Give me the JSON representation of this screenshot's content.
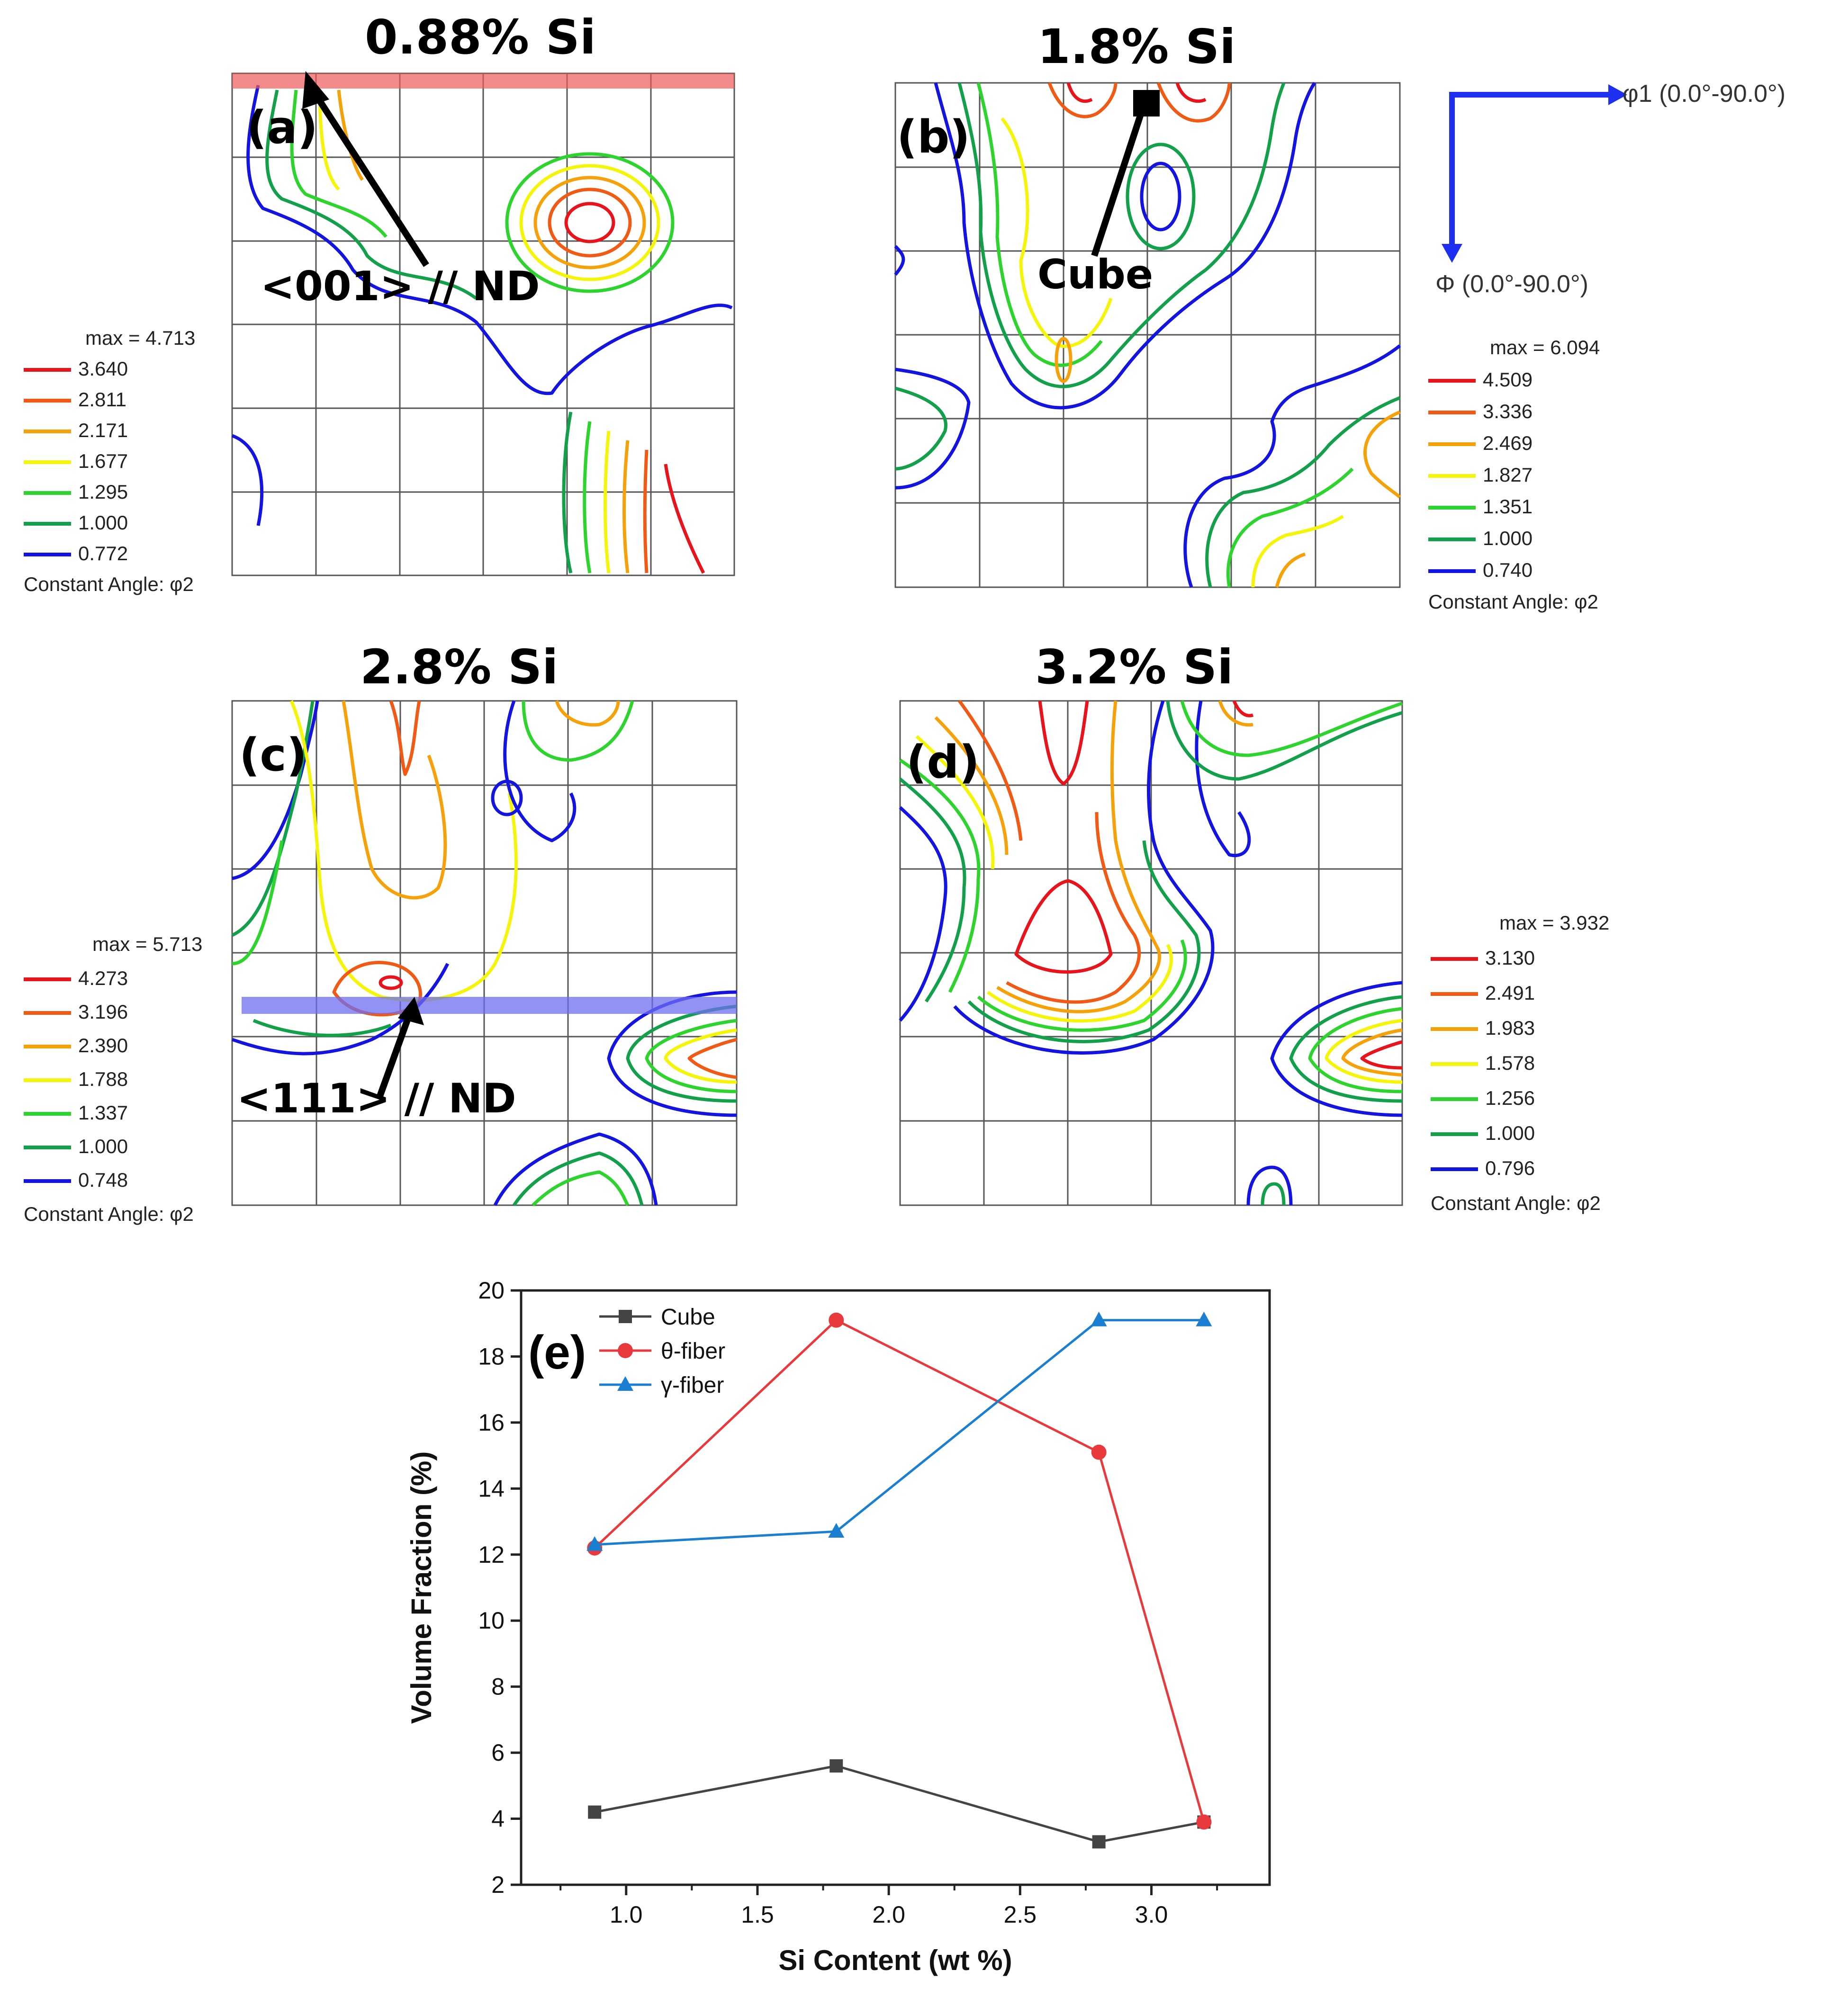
{
  "panels": [
    {
      "id": "a",
      "title": "0.88% Si",
      "letter": "(a)",
      "annotation": "<001> // ND",
      "legend": {
        "max": "max = 4.713",
        "levels": [
          "3.640",
          "2.811",
          "2.171",
          "1.677",
          "1.295",
          "1.000",
          "0.772"
        ],
        "footer": "Constant Angle: φ2"
      }
    },
    {
      "id": "b",
      "title": "1.8% Si",
      "letter": "(b)",
      "annotation": "Cube",
      "legend": {
        "max": "max = 6.094",
        "levels": [
          "4.509",
          "3.336",
          "2.469",
          "1.827",
          "1.351",
          "1.000",
          "0.740"
        ],
        "footer": "Constant Angle: φ2"
      }
    },
    {
      "id": "c",
      "title": "2.8% Si",
      "letter": "(c)",
      "annotation": "<111> // ND",
      "legend": {
        "max": "max = 5.713",
        "levels": [
          "4.273",
          "3.196",
          "2.390",
          "1.788",
          "1.337",
          "1.000",
          "0.748"
        ],
        "footer": "Constant Angle: φ2"
      }
    },
    {
      "id": "d",
      "title": "3.2% Si",
      "letter": "(d)",
      "annotation": "",
      "legend": {
        "max": "max = 3.932",
        "levels": [
          "3.130",
          "2.491",
          "1.983",
          "1.578",
          "1.256",
          "1.000",
          "0.796"
        ],
        "footer": "Constant Angle: φ2"
      }
    }
  ],
  "level_colors": [
    "#e8141b",
    "#f05a14",
    "#f5a20a",
    "#f5f50a",
    "#2ed42e",
    "#13a04a",
    "#1414e0"
  ],
  "axes_key": {
    "phi1": "φ1 (0.0°-90.0°)",
    "Phi": "Φ (0.0°-90.0°)"
  },
  "chart_data": {
    "type": "line",
    "panel_label": "(e)",
    "xlabel": "Si Content (wt %)",
    "ylabel": "Volume Fraction (%)",
    "xlim": [
      0.6,
      3.45
    ],
    "ylim": [
      2,
      20
    ],
    "xticks": [
      1.0,
      1.5,
      2.0,
      2.5,
      3.0
    ],
    "yticks": [
      2,
      4,
      6,
      8,
      10,
      12,
      14,
      16,
      18,
      20
    ],
    "x": [
      0.88,
      1.8,
      2.8,
      3.2
    ],
    "series": [
      {
        "name": "Cube",
        "color": "#444444",
        "marker": "square",
        "values": [
          4.2,
          5.6,
          3.3,
          3.9
        ]
      },
      {
        "name": "θ-fiber",
        "color": "#e8393c",
        "marker": "circle",
        "values": [
          12.2,
          19.1,
          15.1,
          3.9
        ]
      },
      {
        "name": "γ-fiber",
        "color": "#1a7fd1",
        "marker": "triangle",
        "values": [
          12.3,
          12.7,
          19.1,
          19.1
        ]
      }
    ],
    "legend_position": "top-left"
  }
}
